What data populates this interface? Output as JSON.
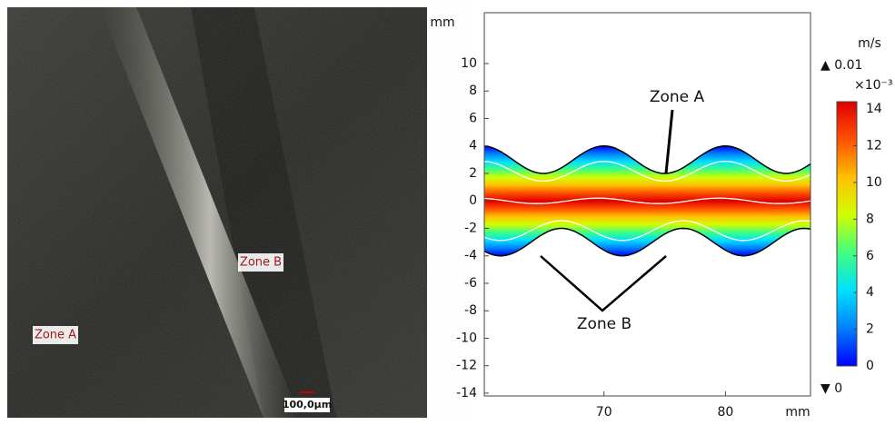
{
  "left_panel": {
    "labels": [
      "Zone B",
      "Zone A"
    ],
    "scale_bar": "100,0µm"
  },
  "chart_data": {
    "type": "field",
    "x_unit": "mm",
    "y_unit": "mm",
    "xlim": [
      60.15,
      87
    ],
    "xticks": [
      70,
      80
    ],
    "ylim": [
      -14.2,
      13.7
    ],
    "yticks": [
      -14,
      -12,
      -10,
      -8,
      -6,
      -4,
      -2,
      0,
      2,
      4,
      6,
      8,
      10
    ],
    "annotations": [
      "Zone A",
      "Zone B"
    ],
    "colorbar": {
      "unit": "m/s",
      "max_label": "▲ 0.01",
      "multiplier": "×10⁻³",
      "min_label": "▼ 0",
      "lim": [
        0,
        14.4
      ],
      "ticks": [
        0,
        2,
        4,
        6,
        8,
        10,
        12,
        14
      ],
      "colors": [
        "#0000ff",
        "#0080ff",
        "#00e0ff",
        "#40ff80",
        "#d0ff00",
        "#ffc000",
        "#ff5000",
        "#e00000"
      ]
    }
  }
}
